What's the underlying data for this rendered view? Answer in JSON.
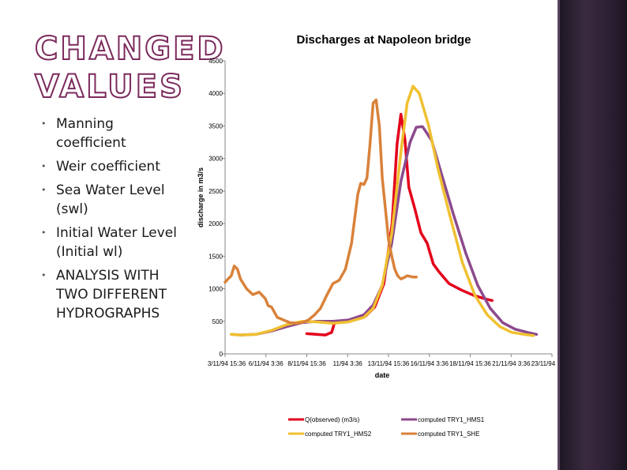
{
  "slide": {
    "title": "CHANGED VALUES",
    "bullets": [
      "Manning coefficient",
      "Weir coefficient",
      "Sea Water Level (swl)",
      "Initial Water Level (Initial wl)",
      "ANALYSIS WITH TWO DIFFERENT HYDROGRAPHS"
    ]
  },
  "chart_data": {
    "type": "line",
    "title": "Discharges at Napoleon bridge",
    "xlabel": "date",
    "ylabel": "discharge in m3/s",
    "ylim": [
      0,
      4500
    ],
    "yticks": [
      0,
      500,
      1000,
      1500,
      2000,
      2500,
      3000,
      3500,
      4000,
      4500
    ],
    "xlim": [
      0,
      100
    ],
    "xtick_labels": [
      "3/11/94 15:36",
      "6/11/94 3:36",
      "8/11/94 15:36",
      "11/94 3:36",
      "13/11/94 15:36",
      "16/11/94 3:36",
      "18/11/94 15:36",
      "21/11/94 3:36",
      "23/11/94 15:36"
    ],
    "xtick_positions": [
      0,
      12.5,
      25,
      37.5,
      50,
      62.5,
      75,
      87.5,
      100
    ],
    "legend_position": "bottom",
    "series": [
      {
        "name": "Q(observed) (m3/s)",
        "color": "#e3001b",
        "x": [
          25,
          30.7,
          32.6,
          33.5,
          35.4,
          36.3,
          39.2,
          43,
          45.8,
          48.6,
          51.1,
          52.6,
          53.8,
          55,
          56.2,
          58.1,
          59.9,
          61.8,
          63.7,
          65.6,
          68.5,
          72.3,
          76,
          79.8,
          81.7
        ],
        "y": [
          310,
          290,
          330,
          480,
          500,
          500,
          520,
          580,
          720,
          1080,
          2010,
          3220,
          3680,
          3300,
          2560,
          2220,
          1860,
          1700,
          1380,
          1250,
          1080,
          980,
          900,
          840,
          820
        ]
      },
      {
        "name": "computed TRY1_HMS1",
        "color": "#8c4a8c",
        "x": [
          1.9,
          4.7,
          9.4,
          14.2,
          18.9,
          23.6,
          28.3,
          33,
          37.7,
          42.5,
          45.3,
          48.1,
          51,
          53.8,
          56.6,
          58.5,
          60.4,
          63.2,
          66,
          69.8,
          73.6,
          77.3,
          81.1,
          84.9,
          88.7,
          92.5,
          95.3
        ],
        "y": [
          300,
          290,
          300,
          350,
          420,
          480,
          500,
          500,
          520,
          600,
          750,
          1050,
          1700,
          2650,
          3250,
          3480,
          3490,
          3280,
          2800,
          2150,
          1550,
          1050,
          700,
          480,
          380,
          330,
          300
        ]
      },
      {
        "name": "computed TRY1_HMS2",
        "color": "#f0c030",
        "x": [
          1.9,
          4.7,
          9.4,
          14.2,
          18.9,
          23.6,
          28.3,
          33,
          37.7,
          42.5,
          45.3,
          48.1,
          51,
          53.8,
          55.7,
          57.5,
          59.4,
          62.3,
          65.1,
          68.9,
          72.6,
          76.4,
          80.2,
          84,
          87.7,
          91.5,
          94.3
        ],
        "y": [
          300,
          290,
          300,
          360,
          450,
          500,
          490,
          470,
          490,
          560,
          700,
          1050,
          1850,
          3100,
          3850,
          4110,
          4000,
          3500,
          2850,
          2100,
          1400,
          900,
          600,
          420,
          330,
          300,
          280
        ]
      },
      {
        "name": "computed TRY1_SHE",
        "color": "#d9823a",
        "x": [
          0,
          0.9,
          1.9,
          2.8,
          3.8,
          4.7,
          6.6,
          8.5,
          10.4,
          12.3,
          13.2,
          14.2,
          16,
          17.9,
          19.8,
          21.7,
          23.6,
          25.5,
          27.4,
          29.2,
          31.1,
          33,
          34.9,
          36.8,
          38.7,
          40.6,
          41.5,
          42.5,
          43.4,
          44.3,
          45.3,
          46.2,
          47.2,
          48.1,
          49.1,
          50,
          51,
          51.9,
          52.8,
          53.8,
          54.7,
          55.7,
          56.6,
          57.5,
          58.5
        ],
        "y": [
          1100,
          1150,
          1200,
          1350,
          1300,
          1150,
          1000,
          910,
          950,
          850,
          740,
          720,
          560,
          520,
          480,
          470,
          480,
          520,
          600,
          700,
          900,
          1080,
          1130,
          1300,
          1700,
          2450,
          2620,
          2600,
          2700,
          3200,
          3850,
          3900,
          3500,
          2700,
          2200,
          1750,
          1500,
          1300,
          1200,
          1150,
          1170,
          1200,
          1190,
          1180,
          1180
        ]
      }
    ]
  }
}
